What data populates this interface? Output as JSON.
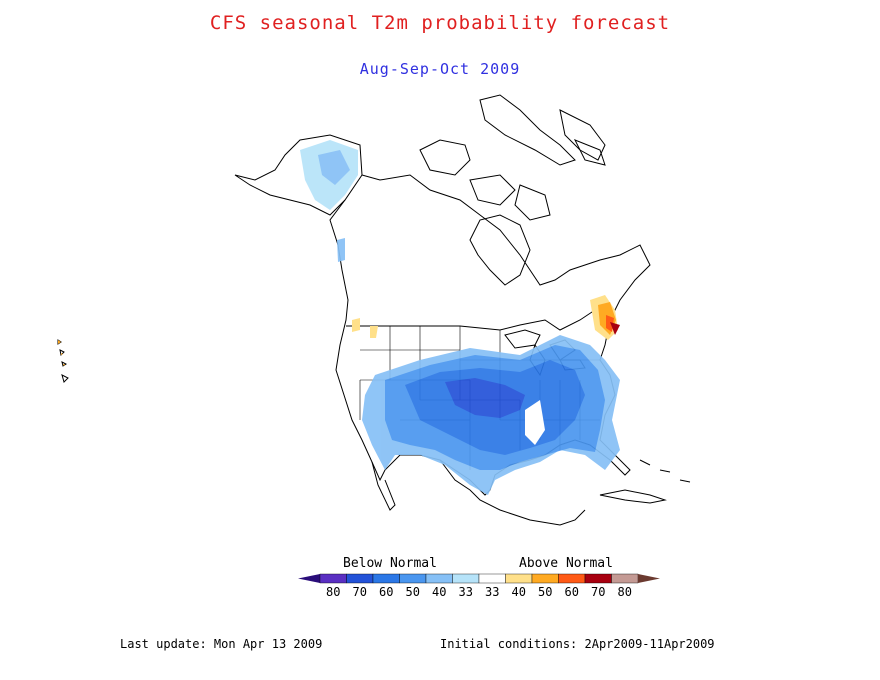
{
  "title": "CFS seasonal T2m probability forecast",
  "subtitle": "Aug-Sep-Oct 2009",
  "legend": {
    "below_label": "Below Normal",
    "above_label": "Above Normal",
    "bins": [
      {
        "label": "80",
        "color": "#5a2fc2"
      },
      {
        "label": "70",
        "color": "#2352d8"
      },
      {
        "label": "60",
        "color": "#2b77e6"
      },
      {
        "label": "50",
        "color": "#4a96ef"
      },
      {
        "label": "40",
        "color": "#86c0f6"
      },
      {
        "label": "33",
        "color": "#b6e3f9"
      },
      {
        "label": "33",
        "color": "#ffffff"
      },
      {
        "label": "40",
        "color": "#ffe08a"
      },
      {
        "label": "50",
        "color": "#ffaa22"
      },
      {
        "label": "60",
        "color": "#ff5a16"
      },
      {
        "label": "70",
        "color": "#a80010"
      },
      {
        "label": "80",
        "color": "#c49a94"
      }
    ],
    "low_end_color": "#2a0d7a",
    "high_end_color": "#6b3a30"
  },
  "footer": {
    "last_update": "Last update: Mon Apr 13 2009",
    "initial_conditions": "Initial conditions: 2Apr2009-11Apr2009"
  }
}
